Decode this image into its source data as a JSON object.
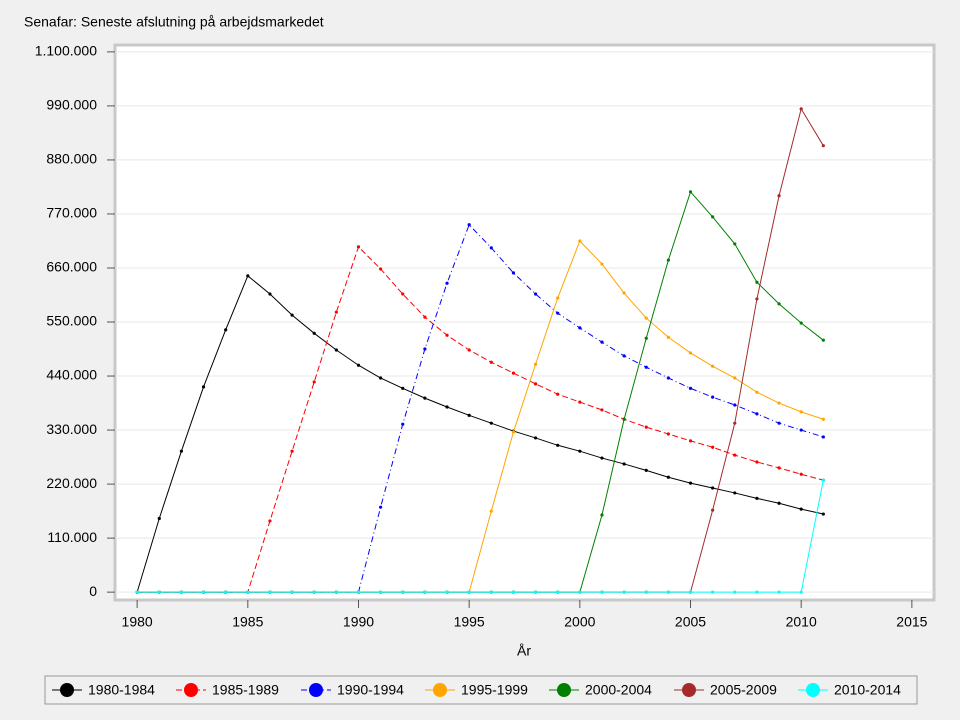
{
  "chart_data": {
    "type": "line",
    "title": "Senafar: Seneste afslutning på arbejdsmarkedet",
    "x_label": "År",
    "x": [
      1980,
      1981,
      1982,
      1983,
      1984,
      1985,
      1986,
      1987,
      1988,
      1989,
      1990,
      1991,
      1992,
      1993,
      1994,
      1995,
      1996,
      1997,
      1998,
      1999,
      2000,
      2001,
      2002,
      2003,
      2004,
      2005,
      2006,
      2007,
      2008,
      2009,
      2010,
      2011
    ],
    "xlim": [
      1979,
      2016
    ],
    "xticks": [
      1980,
      1985,
      1990,
      1995,
      2000,
      2005,
      2010,
      2015
    ],
    "ylim": [
      -16000,
      1114000
    ],
    "yticks": [
      0,
      {
        "value": 110000,
        "label": "110.000"
      },
      {
        "value": 220000,
        "label": "220.000"
      },
      {
        "value": 330000,
        "label": "330.000"
      },
      {
        "value": 440000,
        "label": "440.000"
      },
      {
        "value": 550000,
        "label": "550.000"
      },
      {
        "value": 660000,
        "label": "660.000"
      },
      {
        "value": 770000,
        "label": "770.000"
      },
      {
        "value": 880000,
        "label": "880.000"
      },
      {
        "value": 990000,
        "label": "990.000"
      },
      {
        "value": 1100000,
        "label": "1.100.000"
      }
    ],
    "grid": true,
    "series": [
      {
        "name": "1980-1984",
        "color": "#000000",
        "linestyle": "solid",
        "values": [
          0,
          150000,
          287000,
          418000,
          534000,
          644000,
          607000,
          564000,
          527000,
          493000,
          462000,
          436000,
          415000,
          395000,
          377000,
          360000,
          344000,
          328000,
          314000,
          299000,
          287000,
          273000,
          261000,
          248000,
          234000,
          222000,
          212000,
          202000,
          191000,
          181000,
          169000,
          159000
        ]
      },
      {
        "name": "1985-1989",
        "color": "#ff0000",
        "linestyle": "dashed",
        "values": [
          0,
          0,
          0,
          0,
          0,
          0,
          145000,
          287000,
          428000,
          570000,
          703000,
          658000,
          607000,
          560000,
          523000,
          493000,
          468000,
          446000,
          424000,
          403000,
          387000,
          371000,
          352000,
          336000,
          322000,
          308000,
          295000,
          279000,
          265000,
          253000,
          240000,
          228000
        ]
      },
      {
        "name": "1990-1994",
        "color": "#0000ff",
        "linestyle": "dashdot",
        "values": [
          0,
          0,
          0,
          0,
          0,
          0,
          0,
          0,
          0,
          0,
          0,
          173000,
          342000,
          495000,
          629000,
          748000,
          701000,
          650000,
          607000,
          568000,
          538000,
          509000,
          481000,
          458000,
          436000,
          415000,
          397000,
          381000,
          363000,
          344000,
          330000,
          316000
        ]
      },
      {
        "name": "1995-1999",
        "color": "#ffa500",
        "linestyle": "solid",
        "values": [
          0,
          0,
          0,
          0,
          0,
          0,
          0,
          0,
          0,
          0,
          0,
          0,
          0,
          0,
          0,
          0,
          165000,
          326000,
          464000,
          599000,
          715000,
          668000,
          609000,
          558000,
          519000,
          487000,
          460000,
          436000,
          407000,
          385000,
          367000,
          352000
        ]
      },
      {
        "name": "2000-2004",
        "color": "#008000",
        "linestyle": "solid",
        "values": [
          0,
          0,
          0,
          0,
          0,
          0,
          0,
          0,
          0,
          0,
          0,
          0,
          0,
          0,
          0,
          0,
          0,
          0,
          0,
          0,
          0,
          157000,
          352000,
          517000,
          676000,
          815000,
          764000,
          709000,
          631000,
          587000,
          548000,
          513000
        ]
      },
      {
        "name": "2005-2009",
        "color": "#a52a2a",
        "linestyle": "solid",
        "values": [
          0,
          0,
          0,
          0,
          0,
          0,
          0,
          0,
          0,
          0,
          0,
          0,
          0,
          0,
          0,
          0,
          0,
          0,
          0,
          0,
          0,
          0,
          0,
          0,
          0,
          0,
          167000,
          344000,
          597000,
          807000,
          984000,
          909000
        ]
      },
      {
        "name": "2010-2014",
        "color": "#00ffff",
        "linestyle": "solid",
        "values": [
          0,
          0,
          0,
          0,
          0,
          0,
          0,
          0,
          0,
          0,
          0,
          0,
          0,
          0,
          0,
          0,
          0,
          0,
          0,
          0,
          0,
          0,
          0,
          0,
          0,
          0,
          0,
          0,
          0,
          0,
          0,
          228000
        ]
      }
    ]
  }
}
